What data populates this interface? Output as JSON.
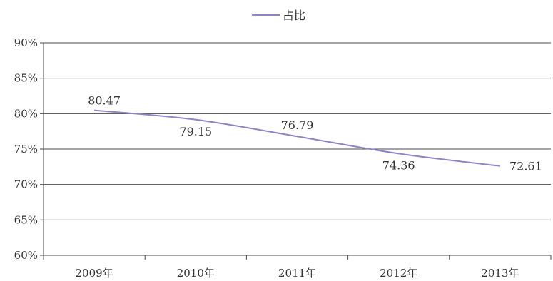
{
  "chart_data": {
    "type": "line",
    "categories": [
      "2009年",
      "2010年",
      "2011年",
      "2012年",
      "2013年"
    ],
    "series": [
      {
        "name": "占比",
        "values": [
          80.47,
          79.15,
          76.79,
          74.36,
          72.61
        ],
        "data_labels": [
          "80.47",
          "79.15",
          "76.79",
          "74.36",
          "72.61"
        ],
        "color": "#8c86c4"
      }
    ],
    "y_ticks": [
      {
        "value": 60,
        "label": "60%"
      },
      {
        "value": 65,
        "label": "65%"
      },
      {
        "value": 70,
        "label": "70%"
      },
      {
        "value": 75,
        "label": "75%"
      },
      {
        "value": 80,
        "label": "80%"
      },
      {
        "value": 85,
        "label": "85%"
      },
      {
        "value": 90,
        "label": "90%"
      }
    ],
    "ylim": [
      60,
      90
    ],
    "grid": true,
    "legend_position": "top-center",
    "title": "",
    "xlabel": "",
    "ylabel": ""
  }
}
